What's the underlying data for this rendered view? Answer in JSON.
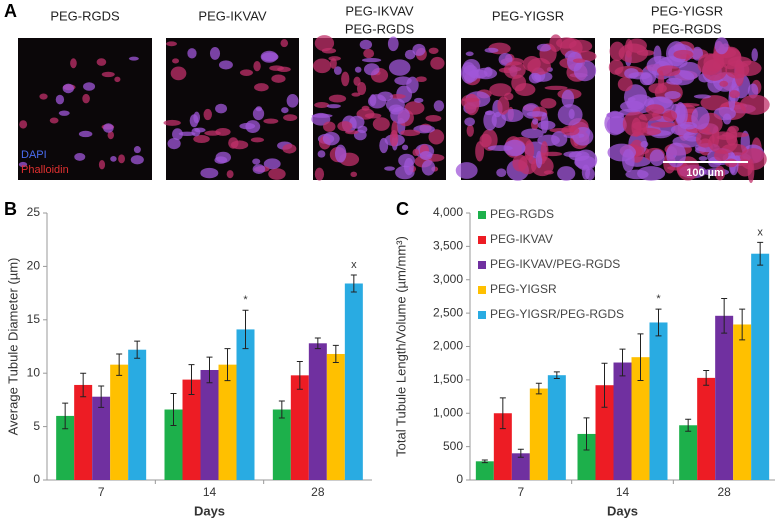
{
  "panel_a": {
    "label": "A",
    "images": [
      {
        "title": [
          "PEG-RGDS"
        ]
      },
      {
        "title": [
          "PEG-IKVAV"
        ]
      },
      {
        "title": [
          "PEG-IKVAV",
          "PEG-RGDS"
        ]
      },
      {
        "title": [
          "PEG-YIGSR"
        ]
      },
      {
        "title": [
          "PEG-YIGSR",
          "PEG-RGDS"
        ]
      }
    ],
    "stains": [
      "DAPI",
      "Phalloidin"
    ],
    "scale_bar": "100 µm"
  },
  "chart_data": [
    {
      "type": "bar",
      "panel": "B",
      "xlabel": "Days",
      "ylabel": "Average Tubule Diameter (µm)",
      "categories": [
        "7",
        "14",
        "28"
      ],
      "ylim": [
        0,
        25
      ],
      "yticks": [
        0,
        5,
        10,
        15,
        20,
        25
      ],
      "grid": false,
      "legend": false,
      "series": [
        {
          "color": "#1db04b",
          "values": [
            6.0,
            6.6,
            6.6
          ],
          "errors": [
            1.2,
            1.5,
            0.8
          ]
        },
        {
          "color": "#ed1c24",
          "values": [
            8.9,
            9.4,
            9.8
          ],
          "errors": [
            1.1,
            1.4,
            1.3
          ]
        },
        {
          "color": "#7030a0",
          "values": [
            7.8,
            10.3,
            12.8
          ],
          "errors": [
            1.0,
            1.2,
            0.5
          ]
        },
        {
          "color": "#ffc000",
          "values": [
            10.8,
            10.8,
            11.8
          ],
          "errors": [
            1.0,
            1.5,
            0.8
          ]
        },
        {
          "color": "#29abe2",
          "values": [
            12.2,
            14.1,
            18.4
          ],
          "errors": [
            0.8,
            1.8,
            0.8
          ]
        }
      ],
      "annotations": [
        {
          "text": "*",
          "x": "14"
        },
        {
          "text": "x",
          "x": "28"
        }
      ]
    },
    {
      "type": "bar",
      "panel": "C",
      "xlabel": "Days",
      "ylabel": "Total Tubule Length/Volume (µm/mm³)",
      "categories": [
        "7",
        "14",
        "28"
      ],
      "ylim": [
        0,
        4000
      ],
      "yticks": [
        0,
        500,
        {
          "value": 1000,
          "label": "1,000"
        },
        {
          "value": 1500,
          "label": "1,500"
        },
        {
          "value": 2000,
          "label": "2,000"
        },
        {
          "value": 2500,
          "label": "2,500"
        },
        {
          "value": 3000,
          "label": "3,000"
        },
        {
          "value": 3500,
          "label": "3,500"
        },
        {
          "value": 4000,
          "label": "4,000"
        }
      ],
      "grid": false,
      "legend": "upper left",
      "series": [
        {
          "name": "PEG-RGDS",
          "color": "#1db04b",
          "values": [
            280,
            690,
            820
          ],
          "errors": [
            20,
            240,
            90
          ]
        },
        {
          "name": "PEG-IKVAV",
          "color": "#ed1c24",
          "values": [
            1000,
            1420,
            1530
          ],
          "errors": [
            230,
            330,
            110
          ]
        },
        {
          "name": "PEG-IKVAV/PEG-RGDS",
          "color": "#7030a0",
          "values": [
            400,
            1760,
            2460
          ],
          "errors": [
            60,
            200,
            260
          ]
        },
        {
          "name": "PEG-YIGSR",
          "color": "#ffc000",
          "values": [
            1370,
            1840,
            2330
          ],
          "errors": [
            80,
            350,
            230
          ]
        },
        {
          "name": "PEG-YIGSR/PEG-RGDS",
          "color": "#29abe2",
          "values": [
            1570,
            2360,
            3390
          ],
          "errors": [
            50,
            200,
            170
          ]
        }
      ],
      "annotations": [
        {
          "text": "*",
          "x": "14"
        },
        {
          "text": "x",
          "x": "28"
        }
      ]
    }
  ]
}
